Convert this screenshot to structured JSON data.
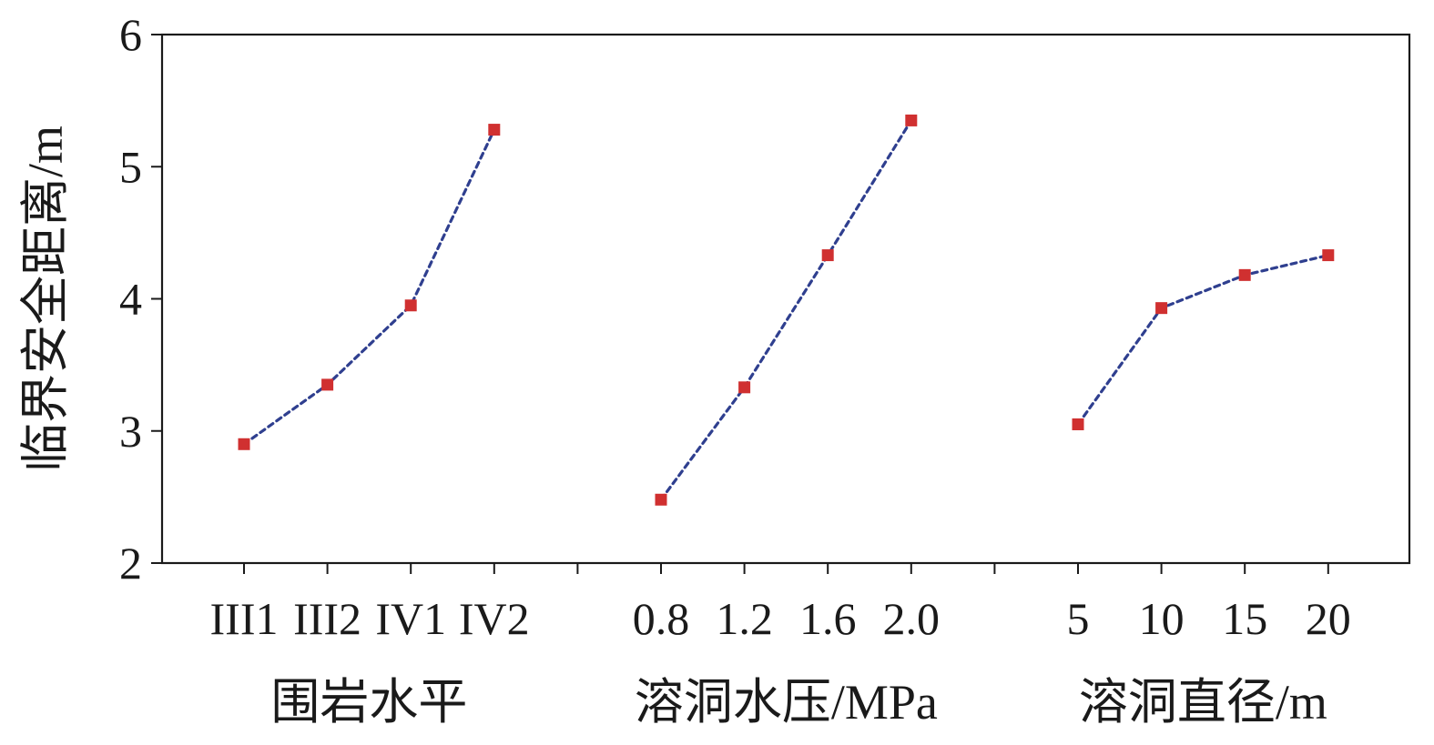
{
  "chart_data": {
    "type": "line",
    "ylabel": "临界安全距离/m",
    "ylim": [
      2,
      6
    ],
    "yticks": [
      "2",
      "3",
      "4",
      "5",
      "6"
    ],
    "grid": false,
    "line_color": "#2f3f8f",
    "marker_color": "#d03030",
    "line_style": "dotted",
    "marker": "square",
    "groups": [
      {
        "xlabel": "围岩水平",
        "categories": [
          "III1",
          "III2",
          "IV1",
          "IV2"
        ],
        "values": [
          2.9,
          3.35,
          3.95,
          5.28
        ]
      },
      {
        "xlabel": "溶洞水压/MPa",
        "categories": [
          "0.8",
          "1.2",
          "1.6",
          "2.0"
        ],
        "values": [
          2.48,
          3.33,
          4.33,
          5.35
        ]
      },
      {
        "xlabel": "溶洞直径/m",
        "categories": [
          "5",
          "10",
          "15",
          "20"
        ],
        "values": [
          3.05,
          3.93,
          4.18,
          4.33
        ]
      }
    ]
  }
}
